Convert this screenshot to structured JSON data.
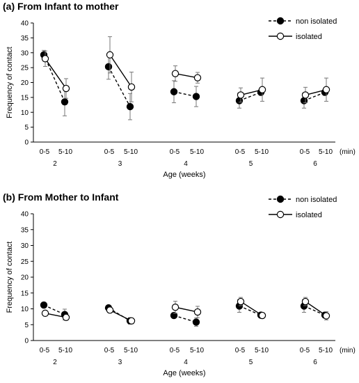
{
  "chart_data": [
    {
      "type": "line",
      "title": "(a) From Infant to mother",
      "ylabel": "Frequency of contact",
      "xlabel": "Age (weeks)",
      "ylim": [
        0,
        40
      ],
      "yticks": [
        "0",
        "5",
        "10",
        "15",
        "20",
        "25",
        "30",
        "35",
        "40"
      ],
      "weeks": [
        "2",
        "3",
        "4",
        "5",
        "6"
      ],
      "intervals": [
        "0-5",
        "5-10"
      ],
      "unit_label": "(min)",
      "legend_position": "top-right",
      "series": [
        {
          "name": "non isolated",
          "marker": "filled",
          "line": "dashed",
          "values": [
            [
              29.3,
              13.5
            ],
            [
              25.3,
              11.9
            ],
            [
              16.9,
              15.3
            ],
            [
              13.9,
              16.7
            ],
            [
              13.9,
              16.7
            ]
          ],
          "errors": [
            [
              1.5,
              4.7
            ],
            [
              4.2,
              4.4
            ],
            [
              3.7,
              3.4
            ],
            [
              2.5,
              1.0
            ],
            [
              2.5,
              1.0
            ]
          ]
        },
        {
          "name": "isolated",
          "marker": "open",
          "line": "solid",
          "values": [
            [
              28.0,
              18.0
            ],
            [
              29.3,
              18.5
            ],
            [
              23.0,
              21.6
            ],
            [
              15.8,
              17.6
            ],
            [
              15.8,
              17.6
            ]
          ],
          "errors": [
            [
              2.6,
              3.3
            ],
            [
              6.1,
              5.0
            ],
            [
              2.6,
              1.8
            ],
            [
              2.4,
              3.9
            ],
            [
              2.6,
              3.9
            ]
          ]
        }
      ]
    },
    {
      "type": "line",
      "title": "(b) From Mother to Infant",
      "ylabel": "Frequency of contact",
      "xlabel": "Age (weeks)",
      "ylim": [
        0,
        40
      ],
      "yticks": [
        "0",
        "5",
        "10",
        "15",
        "20",
        "25",
        "30",
        "35",
        "40"
      ],
      "weeks": [
        "2",
        "3",
        "4",
        "5",
        "6"
      ],
      "intervals": [
        "0-5",
        "5-10"
      ],
      "unit_label": "(min)",
      "legend_position": "top-right",
      "series": [
        {
          "name": "non isolated",
          "marker": "filled",
          "line": "dashed",
          "values": [
            [
              11.2,
              8.2
            ],
            [
              10.3,
              6.2
            ],
            [
              7.9,
              5.8
            ],
            [
              10.9,
              8.0
            ],
            [
              10.9,
              8.0
            ]
          ],
          "errors": [
            [
              0.8,
              1.7
            ],
            [
              0.6,
              1.0
            ],
            [
              0.6,
              1.3
            ],
            [
              2.0,
              0.7
            ],
            [
              2.0,
              0.7
            ]
          ]
        },
        {
          "name": "isolated",
          "marker": "open",
          "line": "solid",
          "values": [
            [
              8.6,
              7.3
            ],
            [
              9.6,
              6.2
            ],
            [
              10.5,
              9.0
            ],
            [
              12.3,
              7.9
            ],
            [
              12.3,
              7.8
            ]
          ],
          "errors": [
            [
              0.9,
              0.9
            ],
            [
              0.9,
              0.9
            ],
            [
              1.9,
              1.8
            ],
            [
              1.3,
              0.9
            ],
            [
              1.3,
              1.3
            ]
          ]
        }
      ]
    }
  ]
}
